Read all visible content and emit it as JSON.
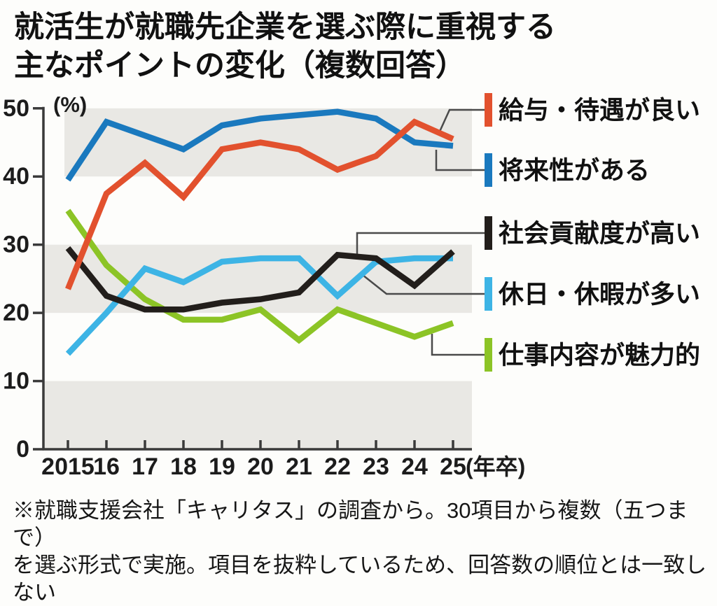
{
  "title": {
    "line1": "就活生が就職先企業を選ぶ際に重視する",
    "line2": "主なポイントの変化（複数回答）"
  },
  "chart_data": {
    "type": "line",
    "x": [
      "2015",
      "16",
      "17",
      "18",
      "19",
      "20",
      "21",
      "22",
      "23",
      "24",
      "25"
    ],
    "x_axis_unit": "(年卒)",
    "y_axis_unit": "(%)",
    "y_ticks": [
      50,
      40,
      30,
      20,
      10,
      0
    ],
    "ylim": [
      0,
      50
    ],
    "grid": "alternating-gray-bands",
    "band_color": "#e9e8e4",
    "legend_position": "right",
    "series": [
      {
        "key": "salary-treatment",
        "name": "給与・待遇が良い",
        "color": "#e2512e",
        "values": [
          23.5,
          37.5,
          42,
          37,
          44,
          45,
          44,
          41,
          43,
          48,
          45.5
        ]
      },
      {
        "key": "future-potential",
        "name": "将来性がある",
        "color": "#1a79be",
        "values": [
          39.5,
          48,
          46,
          44,
          47.5,
          48.5,
          49,
          49.5,
          48.5,
          45,
          44.5
        ]
      },
      {
        "key": "social-contribution",
        "name": "社会貢献度が高い",
        "color": "#221e1b",
        "values": [
          29.5,
          22.5,
          20.5,
          20.5,
          21.5,
          22,
          23,
          28.5,
          28,
          24,
          29
        ]
      },
      {
        "key": "holidays-vacation",
        "name": "休日・休暇が多い",
        "color": "#3db4e5",
        "values": [
          14,
          20,
          26.5,
          24.5,
          27.5,
          28,
          28,
          22.5,
          27.5,
          28,
          28
        ]
      },
      {
        "key": "work-content",
        "name": "仕事内容が魅力的",
        "color": "#8cc426",
        "values": [
          35,
          27,
          22,
          19,
          19,
          20.5,
          16,
          20.5,
          18.5,
          16.5,
          18.5
        ]
      }
    ]
  },
  "footnote": {
    "lines": [
      "※就職支援会社「キャリタス」の調査から。30項目から複数（五つまで）",
      "を選ぶ形式で実施。項目を抜粋しているため、回答数の順位とは一致し",
      "ない"
    ]
  }
}
